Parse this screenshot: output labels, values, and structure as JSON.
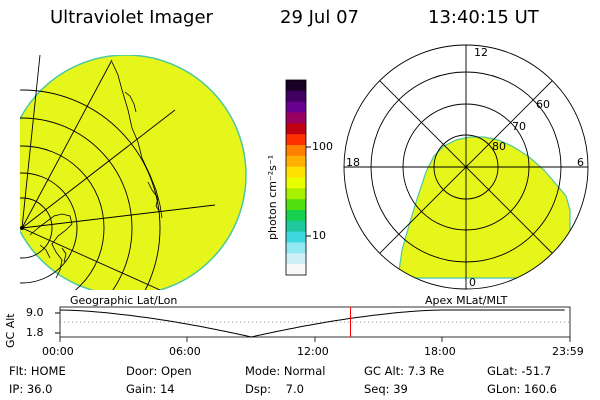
{
  "header": {
    "title": "Ultraviolet Imager",
    "date": "29 Jul 07",
    "time": "13:40:15 UT"
  },
  "colorbar": {
    "unit_label": "photon cm⁻²s⁻¹",
    "tick_100": "100",
    "tick_10": "10",
    "colors": [
      "#1a0026",
      "#400060",
      "#6a0090",
      "#9a0060",
      "#c00010",
      "#ff3000",
      "#ff8000",
      "#ffb000",
      "#ffe000",
      "#e8ff00",
      "#a8f000",
      "#50e010",
      "#18d050",
      "#20c8a0",
      "#40d8e0",
      "#90e8f0",
      "#d0f0f8",
      "#f8f8f8"
    ]
  },
  "left_panel": {
    "label": "Geographic Lat/Lon",
    "fill_color": "#e6f51a"
  },
  "right_panel": {
    "label": "Apex MLat/MLT",
    "mlt_12": "12",
    "mlt_18": "18",
    "mlt_6": "6",
    "mlt_0": "0",
    "lat_60": "60",
    "lat_70": "70",
    "lat_80": "80"
  },
  "altitude_plot": {
    "ylabel": "GC Alt",
    "ytick_top": "9.0",
    "ytick_bottom": "1.8",
    "xticks": [
      "00:00",
      "06:00",
      "12:00",
      "18:00",
      "23:59"
    ],
    "current_time_hours": 13.67
  },
  "info": {
    "flt_label": "Flt:",
    "flt_value": "HOME",
    "ip_label": "IP:",
    "ip_value": "36.0",
    "door_label": "Door:",
    "door_value": "Open",
    "gain_label": "Gain:",
    "gain_value": "14",
    "mode_label": "Mode:",
    "mode_value": "Normal",
    "dsp_label": "Dsp:",
    "dsp_value": "7.0",
    "gcalt_label": "GC Alt:",
    "gcalt_value": "7.3 Re",
    "seq_label": "Seq:",
    "seq_value": "39",
    "glat_label": "GLat:",
    "glat_value": "-51.7",
    "glon_label": "GLon:",
    "glon_value": "160.6"
  }
}
